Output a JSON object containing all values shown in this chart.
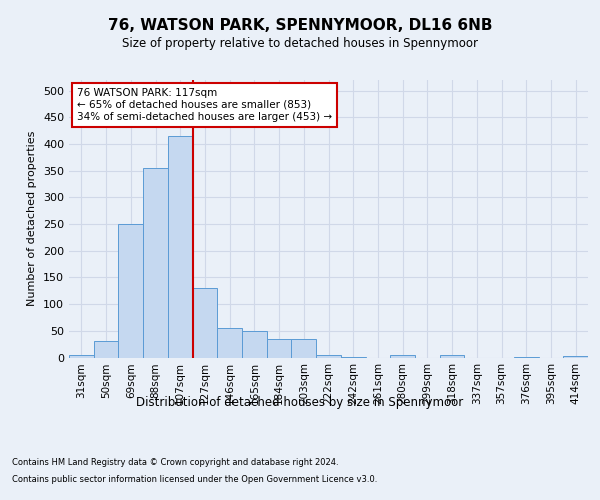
{
  "title": "76, WATSON PARK, SPENNYMOOR, DL16 6NB",
  "subtitle": "Size of property relative to detached houses in Spennymoor",
  "xlabel": "Distribution of detached houses by size in Spennymoor",
  "ylabel": "Number of detached properties",
  "bins": [
    "31sqm",
    "50sqm",
    "69sqm",
    "88sqm",
    "107sqm",
    "127sqm",
    "146sqm",
    "165sqm",
    "184sqm",
    "203sqm",
    "222sqm",
    "242sqm",
    "261sqm",
    "280sqm",
    "299sqm",
    "318sqm",
    "337sqm",
    "357sqm",
    "376sqm",
    "395sqm",
    "414sqm"
  ],
  "values": [
    5,
    30,
    250,
    355,
    415,
    130,
    55,
    50,
    35,
    35,
    5,
    1,
    0,
    5,
    0,
    5,
    0,
    0,
    1,
    0,
    2
  ],
  "bar_color": "#c5d8f0",
  "bar_edge_color": "#5b9bd5",
  "grid_color": "#d0d8e8",
  "background_color": "#eaf0f8",
  "axes_background": "#eaf0f8",
  "red_line_index": 4.5,
  "annotation_text": "76 WATSON PARK: 117sqm\n← 65% of detached houses are smaller (853)\n34% of semi-detached houses are larger (453) →",
  "annotation_box_color": "#ffffff",
  "annotation_box_edge": "#cc0000",
  "footer_line1": "Contains HM Land Registry data © Crown copyright and database right 2024.",
  "footer_line2": "Contains public sector information licensed under the Open Government Licence v3.0.",
  "ylim": [
    0,
    520
  ],
  "yticks": [
    0,
    50,
    100,
    150,
    200,
    250,
    300,
    350,
    400,
    450,
    500
  ]
}
